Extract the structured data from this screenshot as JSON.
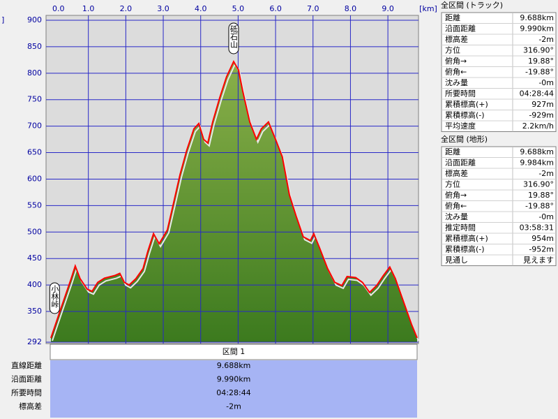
{
  "chart_data": {
    "type": "area-line",
    "x_label": "[km]",
    "y_label": "]",
    "x": [
      0.0,
      0.22,
      0.41,
      0.54,
      0.65,
      0.78,
      0.97,
      1.1,
      1.25,
      1.43,
      1.71,
      1.84,
      1.96,
      2.09,
      2.27,
      2.46,
      2.59,
      2.74,
      2.89,
      3.11,
      3.26,
      3.45,
      3.63,
      3.82,
      3.95,
      4.08,
      4.19,
      4.32,
      4.51,
      4.69,
      4.88,
      5.01,
      5.12,
      5.31,
      5.49,
      5.62,
      5.81,
      6.0,
      6.18,
      6.37,
      6.55,
      6.74,
      6.93,
      7.02,
      7.17,
      7.39,
      7.58,
      7.77,
      7.91,
      8.14,
      8.32,
      8.51,
      8.7,
      8.88,
      9.05,
      9.2,
      9.4,
      9.63,
      9.78
    ],
    "y": [
      300,
      346,
      385,
      412,
      436,
      412,
      392,
      388,
      405,
      413,
      418,
      422,
      405,
      400,
      412,
      431,
      464,
      497,
      478,
      504,
      550,
      609,
      655,
      695,
      705,
      675,
      668,
      708,
      754,
      793,
      822,
      806,
      767,
      708,
      675,
      695,
      708,
      675,
      642,
      570,
      530,
      491,
      484,
      497,
      471,
      431,
      405,
      399,
      416,
      414,
      405,
      386,
      399,
      418,
      434,
      412,
      372,
      326,
      300
    ],
    "line_color": "#ff0000",
    "fill_top": "#8ab04a",
    "fill_bottom": "#3c7a1e",
    "grid": true,
    "xlim": [
      0,
      9.78
    ],
    "xticks": [
      {
        "value": 0,
        "label": "0.0"
      },
      {
        "value": 1,
        "label": "1.0"
      },
      {
        "value": 2,
        "label": "2.0"
      },
      {
        "value": 3,
        "label": "3.0"
      },
      {
        "value": 4,
        "label": "4.0"
      },
      {
        "value": 5,
        "label": "5.0"
      },
      {
        "value": 6,
        "label": "6.0"
      },
      {
        "value": 7,
        "label": "7.0"
      },
      {
        "value": 8,
        "label": "8.0"
      },
      {
        "value": 9,
        "label": "9.0"
      }
    ],
    "ylim": [
      292,
      900
    ],
    "yticks": [
      292,
      350,
      400,
      450,
      500,
      550,
      600,
      650,
      700,
      750,
      800,
      850,
      900
    ],
    "annotations": [
      {
        "label": "小林峠",
        "x": 0.1
      },
      {
        "label": "砥石山",
        "x": 4.88
      }
    ]
  },
  "section": {
    "title": "区間 1",
    "rows": [
      [
        "直線距離",
        "9.688km"
      ],
      [
        "沿面距離",
        "9.990km"
      ],
      [
        "所要時間",
        "04:28:44"
      ],
      [
        "標高差",
        "-2m"
      ]
    ]
  },
  "tables": [
    {
      "title": "全区間 (トラック)",
      "rows": [
        [
          "距離",
          "9.688km"
        ],
        [
          "沿面距離",
          "9.990km"
        ],
        [
          "標高差",
          "-2m"
        ],
        [
          "方位",
          "316.90°"
        ],
        [
          "俯角→",
          "19.88°"
        ],
        [
          "俯角←",
          "-19.88°"
        ],
        [
          "沈み量",
          "-0m"
        ],
        [
          "所要時間",
          "04:28:44"
        ],
        [
          "累積標高(+)",
          "927m"
        ],
        [
          "累積標高(-)",
          "-929m"
        ],
        [
          "平均速度",
          "2.2km/h"
        ]
      ]
    },
    {
      "title": "全区間 (地形)",
      "rows": [
        [
          "距離",
          "9.688km"
        ],
        [
          "沿面距離",
          "9.984km"
        ],
        [
          "標高差",
          "-2m"
        ],
        [
          "方位",
          "316.90°"
        ],
        [
          "俯角→",
          "19.88°"
        ],
        [
          "俯角←",
          "-19.88°"
        ],
        [
          "沈み量",
          "-0m"
        ],
        [
          "推定時間",
          "03:58:31"
        ],
        [
          "累積標高(+)",
          "954m"
        ],
        [
          "累積標高(-)",
          "-952m"
        ],
        [
          "見通し",
          "見えます"
        ]
      ]
    }
  ]
}
